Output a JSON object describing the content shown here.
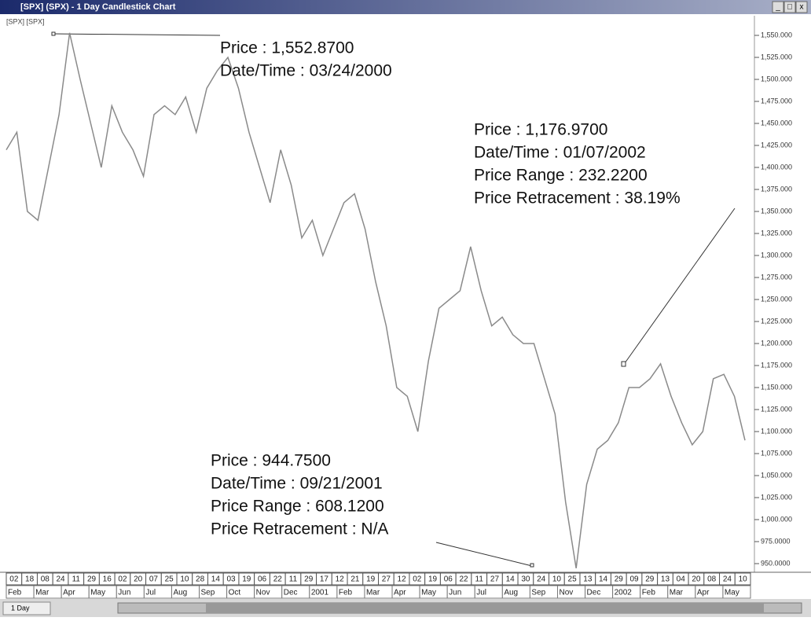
{
  "window": {
    "title": "[SPX] (SPX) - 1 Day Candlestick Chart",
    "buttons": [
      "_",
      "□",
      "x"
    ]
  },
  "chart_data": {
    "type": "line",
    "label": "[SPX] [SPX]",
    "color": "#8a8a8a",
    "categories": [
      null,
      null,
      null,
      null,
      null,
      null,
      null,
      null,
      null,
      null,
      null,
      null,
      null,
      null,
      null,
      null,
      null,
      null,
      null,
      null,
      null,
      null,
      null,
      null,
      null,
      null,
      null,
      null,
      null,
      null,
      null,
      null,
      null,
      null,
      null,
      null,
      null,
      null,
      null,
      null,
      null,
      null,
      null,
      null,
      null,
      null,
      null,
      null,
      null,
      null,
      null,
      null,
      null,
      null,
      null,
      null,
      null,
      null,
      null,
      null,
      null,
      null,
      null,
      null,
      null,
      null,
      null,
      null,
      null,
      null,
      null
    ],
    "values": [
      1420,
      1440,
      1350,
      1340,
      1400,
      1460,
      1552.87,
      1500,
      1450,
      1400,
      1470,
      1440,
      1420,
      1390,
      1460,
      1470,
      1460,
      1480,
      1440,
      1490,
      1510,
      1525,
      1490,
      1440,
      1400,
      1360,
      1420,
      1380,
      1320,
      1340,
      1300,
      1330,
      1360,
      1370,
      1330,
      1270,
      1220,
      1150,
      1140,
      1100,
      1180,
      1240,
      1250,
      1260,
      1310,
      1260,
      1220,
      1230,
      1210,
      1200,
      1200,
      1160,
      1120,
      1020,
      944.75,
      1040,
      1080,
      1090,
      1110,
      1150,
      1150,
      1160,
      1176.97,
      1140,
      1110,
      1085,
      1100,
      1160,
      1165,
      1140,
      1090
    ],
    "ylim": [
      937.5,
      1562.5
    ],
    "yticks": [
      {
        "value": 1550,
        "label": "1,550.000"
      },
      {
        "value": 1525,
        "label": "1,525.000"
      },
      {
        "value": 1500,
        "label": "1,500.000"
      },
      {
        "value": 1475,
        "label": "1,475.000"
      },
      {
        "value": 1450,
        "label": "1,450.000"
      },
      {
        "value": 1425,
        "label": "1,425.000"
      },
      {
        "value": 1400,
        "label": "1,400.000"
      },
      {
        "value": 1375,
        "label": "1,375.000"
      },
      {
        "value": 1350,
        "label": "1,350.000"
      },
      {
        "value": 1325,
        "label": "1,325.000"
      },
      {
        "value": 1300,
        "label": "1,300.000"
      },
      {
        "value": 1275,
        "label": "1,275.000"
      },
      {
        "value": 1250,
        "label": "1,250.000"
      },
      {
        "value": 1225,
        "label": "1,225.000"
      },
      {
        "value": 1200,
        "label": "1,200.000"
      },
      {
        "value": 1175,
        "label": "1,175.000"
      },
      {
        "value": 1150,
        "label": "1,150.000"
      },
      {
        "value": 1125,
        "label": "1,125.000"
      },
      {
        "value": 1100,
        "label": "1,100.000"
      },
      {
        "value": 1075,
        "label": "1,075.000"
      },
      {
        "value": 1050,
        "label": "1,050.000"
      },
      {
        "value": 1025,
        "label": "1,025.000"
      },
      {
        "value": 1000,
        "label": "1,000.000"
      },
      {
        "value": 975,
        "label": "975.0000"
      },
      {
        "value": 950,
        "label": "950.0000"
      }
    ],
    "day_labels": [
      "02",
      "18",
      "08",
      "24",
      "11",
      "29",
      "16",
      "02",
      "20",
      "07",
      "25",
      "10",
      "28",
      "14",
      "03",
      "19",
      "06",
      "22",
      "11",
      "29",
      "17",
      "12",
      "21",
      "19",
      "27",
      "12",
      "02",
      "19",
      "06",
      "22",
      "11",
      "27",
      "14",
      "30",
      "24",
      "10",
      "25",
      "13",
      "14",
      "29",
      "09",
      "29",
      "13",
      "04",
      "20",
      "08",
      "24",
      "10"
    ],
    "month_labels": [
      "Feb",
      "Mar",
      "Apr",
      "May",
      "Jun",
      "Jul",
      "Aug",
      "Sep",
      "Oct",
      "Nov",
      "Dec",
      "2001",
      "Feb",
      "Mar",
      "Apr",
      "May",
      "Jun",
      "Jul",
      "Aug",
      "Sep",
      "Nov",
      "Dec",
      "2002",
      "Feb",
      "Mar",
      "Apr",
      "May"
    ]
  },
  "annotations": [
    {
      "lines": [
        "Price : 1,552.8700",
        "Date/Time : 03/24/2000"
      ]
    },
    {
      "lines": [
        "Price : 1,176.9700",
        "Date/Time : 01/07/2002",
        "Price Range : 232.2200",
        "Price Retracement : 38.19%"
      ]
    },
    {
      "lines": [
        "Price : 944.7500",
        "Date/Time : 09/21/2001",
        "Price Range : 608.1200",
        "Price Retracement : N/A"
      ]
    }
  ],
  "toolbar": {
    "interval": "1 Day"
  }
}
